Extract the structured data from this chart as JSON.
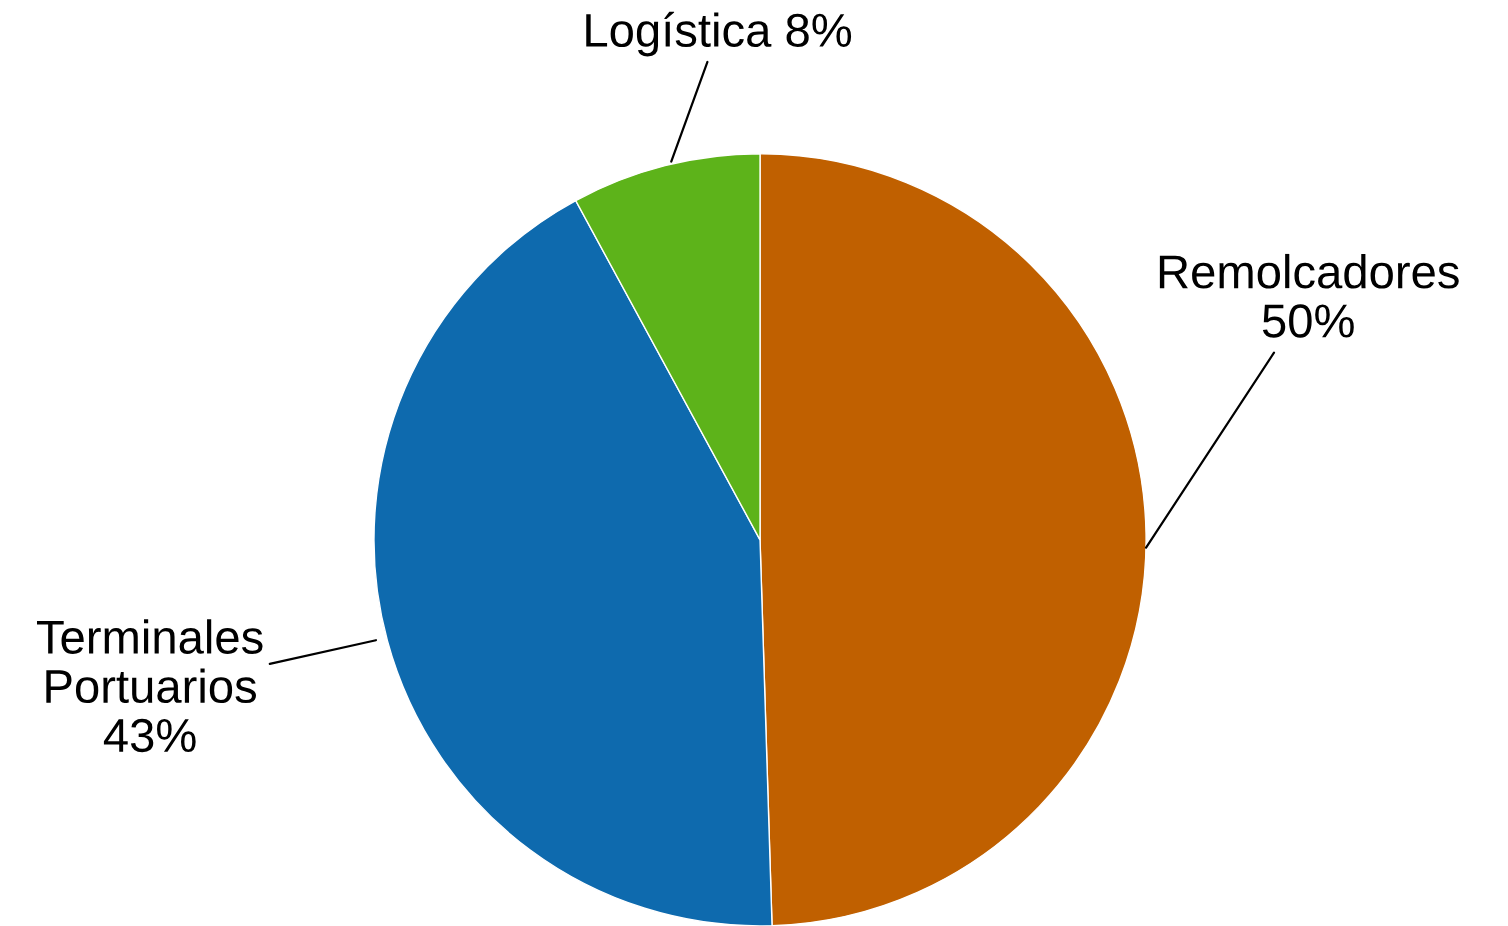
{
  "chart_data": {
    "type": "pie",
    "categories": [
      "Remolcadores",
      "Terminales Portuarios",
      "Logística"
    ],
    "values": [
      50,
      43,
      8
    ],
    "colors": [
      "#c06000",
      "#0e6aae",
      "#5db31a"
    ],
    "value_labels": [
      "50%",
      "43%",
      "8%"
    ]
  }
}
